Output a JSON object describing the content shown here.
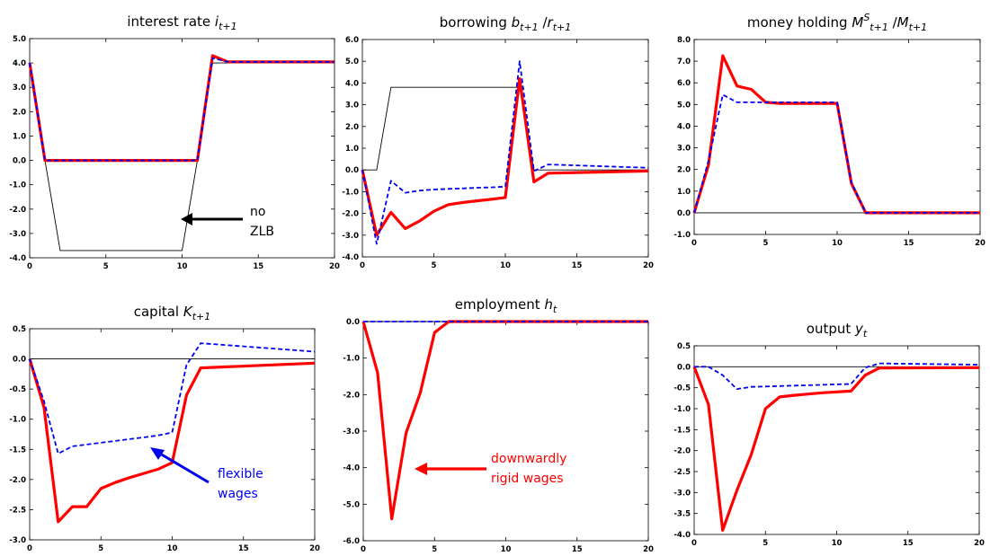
{
  "chart_data": [
    {
      "type": "line",
      "title_main": "interest rate ",
      "title_math": "i",
      "title_sub": "t+1",
      "xlim": [
        0,
        20
      ],
      "ylim": [
        -4,
        5
      ],
      "xticks": [
        "0",
        "5",
        "10",
        "15",
        "20"
      ],
      "yticks": [
        "5.0",
        "4.0",
        "3.0",
        "2.0",
        "1.0",
        "0.0",
        "-1.0",
        "-2.0",
        "-3.0",
        "-4.0"
      ],
      "series": [
        {
          "style": "black",
          "x": [
            0,
            1,
            2,
            10,
            11,
            12,
            20
          ],
          "y": [
            4.0,
            0.0,
            -3.7,
            -3.7,
            0.0,
            4.0,
            4.0
          ]
        },
        {
          "style": "red",
          "x": [
            0,
            1,
            2,
            10,
            11,
            12,
            13,
            20
          ],
          "y": [
            4.0,
            0.0,
            0.0,
            0.0,
            0.0,
            4.3,
            4.05,
            4.05
          ]
        },
        {
          "style": "blue",
          "x": [
            0,
            1,
            2,
            10,
            11,
            12,
            13,
            20
          ],
          "y": [
            4.0,
            0.0,
            0.0,
            0.0,
            0.0,
            4.2,
            4.05,
            4.05
          ]
        }
      ],
      "annotation": {
        "lines": [
          "no",
          "ZLB"
        ],
        "color": "#000000"
      }
    },
    {
      "type": "line",
      "title_main": "borrowing ",
      "title_math": "b",
      "title_sub": "t+1",
      "title_mid": "/",
      "title_math2": "r",
      "title_sub2": "t+1",
      "xlim": [
        0,
        20
      ],
      "ylim": [
        -4,
        6
      ],
      "xticks": [
        "0",
        "5",
        "10",
        "15",
        "20"
      ],
      "yticks": [
        "6.0",
        "5.0",
        "4.0",
        "3.0",
        "2.0",
        "1.0",
        "0.0",
        "-1.0",
        "-2.0",
        "-3.0",
        "-4.0"
      ],
      "series": [
        {
          "style": "black",
          "x": [
            0,
            1,
            2,
            11,
            12,
            13,
            20
          ],
          "y": [
            0.0,
            0.0,
            3.8,
            3.8,
            0.0,
            0.0,
            0.0
          ]
        },
        {
          "style": "red",
          "x": [
            0,
            1,
            2,
            3,
            4,
            5,
            6,
            7,
            8,
            9,
            10,
            11,
            12,
            13,
            20
          ],
          "y": [
            0.0,
            -3.0,
            -1.95,
            -2.7,
            -2.35,
            -1.9,
            -1.6,
            -1.5,
            -1.42,
            -1.35,
            -1.27,
            4.2,
            -0.55,
            -0.15,
            -0.05
          ]
        },
        {
          "style": "blue",
          "x": [
            0,
            1,
            2,
            3,
            4,
            5,
            6,
            7,
            8,
            9,
            10,
            11,
            12,
            13,
            20
          ],
          "y": [
            0.0,
            -3.4,
            -0.5,
            -1.05,
            -0.95,
            -0.9,
            -0.87,
            -0.85,
            -0.82,
            -0.8,
            -0.77,
            5.0,
            -0.05,
            0.25,
            0.1
          ]
        }
      ]
    },
    {
      "type": "line",
      "title_main": "money holding ",
      "title_math": "M",
      "title_sub": "t+1",
      "title_sup": "S",
      "title_mid": "/",
      "title_math2": "M",
      "title_sub2": "t+1",
      "xlim": [
        0,
        20
      ],
      "ylim": [
        -1,
        8
      ],
      "xticks": [
        "0",
        "5",
        "10",
        "15",
        "20"
      ],
      "yticks": [
        "8.0",
        "7.0",
        "6.0",
        "5.0",
        "4.0",
        "3.0",
        "2.0",
        "1.0",
        "0.0",
        "-1.0"
      ],
      "series": [
        {
          "style": "black",
          "x": [
            0,
            20
          ],
          "y": [
            0.0,
            0.0
          ]
        },
        {
          "style": "red",
          "x": [
            0,
            1,
            2,
            3,
            4,
            5,
            6,
            7,
            8,
            9,
            10,
            11,
            12,
            20
          ],
          "y": [
            0.0,
            2.2,
            7.25,
            5.85,
            5.7,
            5.1,
            5.05,
            5.05,
            5.05,
            5.05,
            5.05,
            1.35,
            0.0,
            0.0
          ]
        },
        {
          "style": "blue",
          "x": [
            0,
            1,
            2,
            3,
            4,
            5,
            6,
            7,
            8,
            9,
            10,
            11,
            12,
            20
          ],
          "y": [
            0.0,
            2.4,
            5.45,
            5.1,
            5.1,
            5.1,
            5.1,
            5.1,
            5.1,
            5.1,
            5.1,
            1.4,
            0.0,
            0.0
          ]
        }
      ]
    },
    {
      "type": "line",
      "title_main": "capital ",
      "title_math": "K",
      "title_sub": "t+1",
      "xlim": [
        0,
        20
      ],
      "ylim": [
        -3,
        0.5
      ],
      "xticks": [
        "0",
        "5",
        "10",
        "15",
        "20"
      ],
      "yticks": [
        "0.5",
        "0.0",
        "-0.5",
        "-1.0",
        "-1.5",
        "-2.0",
        "-2.5",
        "-3.0"
      ],
      "series": [
        {
          "style": "black",
          "x": [
            0,
            20
          ],
          "y": [
            0.0,
            0.0
          ]
        },
        {
          "style": "red",
          "x": [
            0,
            1,
            2,
            3,
            4,
            5,
            6,
            7,
            8,
            9,
            10,
            11,
            12,
            20
          ],
          "y": [
            0.0,
            -0.8,
            -2.7,
            -2.45,
            -2.45,
            -2.15,
            -2.05,
            -1.97,
            -1.9,
            -1.83,
            -1.72,
            -0.6,
            -0.15,
            -0.07
          ]
        },
        {
          "style": "blue",
          "x": [
            0,
            1,
            2,
            3,
            4,
            5,
            6,
            7,
            8,
            9,
            10,
            11,
            12,
            20
          ],
          "y": [
            0.0,
            -0.7,
            -1.57,
            -1.45,
            -1.42,
            -1.39,
            -1.36,
            -1.33,
            -1.3,
            -1.27,
            -1.22,
            -0.1,
            0.26,
            0.12
          ]
        }
      ],
      "annotation": {
        "lines": [
          "flexible",
          "wages"
        ],
        "color": "#0000ee"
      }
    },
    {
      "type": "line",
      "title_main": "employment ",
      "title_math": "h",
      "title_sub": "t",
      "xlim": [
        0,
        20
      ],
      "ylim": [
        -6,
        0
      ],
      "xticks": [
        "0",
        "5",
        "10",
        "15",
        "20"
      ],
      "yticks": [
        "0.0",
        "-1.0",
        "-2.0",
        "-3.0",
        "-4.0",
        "-5.0",
        "-6.0"
      ],
      "series": [
        {
          "style": "black",
          "x": [
            0,
            20
          ],
          "y": [
            0.0,
            0.0
          ]
        },
        {
          "style": "red",
          "x": [
            0,
            1,
            2,
            3,
            4,
            5,
            6,
            20
          ],
          "y": [
            0.0,
            -1.4,
            -5.4,
            -3.05,
            -1.95,
            -0.3,
            0.0,
            0.0
          ]
        },
        {
          "style": "blue",
          "x": [
            0,
            20
          ],
          "y": [
            0.0,
            0.0
          ]
        }
      ],
      "annotation": {
        "lines": [
          "downwardly",
          "rigid wages"
        ],
        "color": "#ff0000"
      }
    },
    {
      "type": "line",
      "title_main": "output ",
      "title_math": "y",
      "title_sub": "t",
      "xlim": [
        0,
        20
      ],
      "ylim": [
        -4,
        0.5
      ],
      "xticks": [
        "0",
        "5",
        "10",
        "15",
        "20"
      ],
      "yticks": [
        "0.5",
        "0.0",
        "-0.5",
        "-1.0",
        "-1.5",
        "-2.0",
        "-2.5",
        "-3.0",
        "-3.5",
        "-4.0"
      ],
      "series": [
        {
          "style": "black",
          "x": [
            0,
            20
          ],
          "y": [
            0.0,
            0.0
          ]
        },
        {
          "style": "red",
          "x": [
            0,
            1,
            2,
            3,
            4,
            5,
            6,
            7,
            8,
            9,
            10,
            11,
            12,
            13,
            20
          ],
          "y": [
            0.0,
            -0.9,
            -3.9,
            -2.95,
            -2.1,
            -1.0,
            -0.72,
            -0.68,
            -0.65,
            -0.62,
            -0.6,
            -0.58,
            -0.2,
            -0.03,
            -0.02
          ]
        },
        {
          "style": "blue",
          "x": [
            0,
            1,
            2,
            3,
            4,
            5,
            6,
            7,
            8,
            9,
            10,
            11,
            12,
            13,
            20
          ],
          "y": [
            0.0,
            0.0,
            -0.2,
            -0.53,
            -0.48,
            -0.47,
            -0.46,
            -0.45,
            -0.44,
            -0.43,
            -0.42,
            -0.41,
            -0.02,
            0.08,
            0.05
          ]
        }
      ]
    }
  ]
}
